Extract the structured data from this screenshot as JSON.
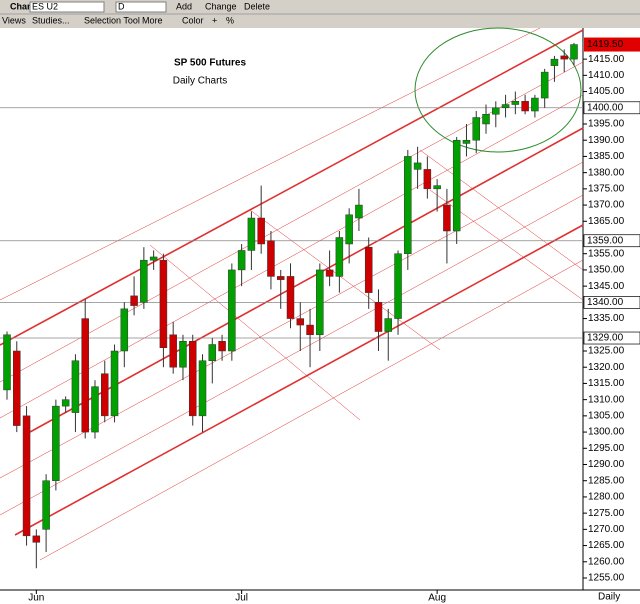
{
  "toolbar": {
    "chart": "Chart",
    "symbol": "ES U2",
    "interval": "D",
    "add": "Add",
    "change": "Change",
    "delete": "Delete",
    "views": "Views",
    "studies": "Studies...",
    "tool": "Selection Tool",
    "more": "More",
    "color": "Color",
    "plus": "+",
    "percent": "%"
  },
  "chart_data": {
    "type": "candlestick",
    "title": "SP 500 Futures",
    "subtitle": "Daily Charts",
    "x_label": "Daily",
    "categories": [
      null,
      null,
      null,
      "Jun",
      null,
      null,
      null,
      null,
      null,
      null,
      null,
      null,
      null,
      null,
      null,
      null,
      null,
      null,
      null,
      null,
      null,
      null,
      null,
      null,
      "Jul",
      null,
      null,
      null,
      null,
      null,
      null,
      null,
      null,
      null,
      null,
      null,
      null,
      null,
      null,
      null,
      null,
      null,
      null,
      null,
      "Aug",
      null,
      null,
      null,
      null,
      null,
      null,
      null,
      null,
      null,
      null,
      null,
      null,
      null,
      null
    ],
    "open": [
      1313,
      1325,
      1305,
      1268,
      1270,
      1285,
      1308,
      1306,
      1335,
      1300,
      1318,
      1305,
      1325,
      1342,
      1340,
      1353,
      1353,
      1330,
      1320,
      1328,
      1305,
      1322,
      1328,
      1325,
      1350,
      1356,
      1366,
      1359,
      1348,
      1348,
      1335,
      1333,
      1330,
      1350,
      1348,
      1358,
      1366,
      1357,
      1340,
      1331,
      1335,
      1355,
      1381,
      1381,
      1375,
      1370,
      1362,
      1389,
      1390,
      1395,
      1398,
      1400,
      1401,
      1402,
      1399,
      1403,
      1413,
      1416,
      1415
    ],
    "high": [
      1331,
      1328,
      1308,
      1270,
      1287,
      1310,
      1311,
      1324,
      1341,
      1316,
      1322,
      1327,
      1340,
      1348,
      1357,
      1356,
      1355,
      1334,
      1330,
      1330,
      1324,
      1329,
      1330,
      1352,
      1358,
      1368,
      1376,
      1362,
      1350,
      1352,
      1340,
      1338,
      1352,
      1356,
      1362,
      1369,
      1375,
      1360,
      1344,
      1338,
      1356,
      1387,
      1388,
      1385,
      1378,
      1375,
      1391,
      1395,
      1399,
      1401,
      1402,
      1404,
      1405,
      1404,
      1404,
      1412,
      1416,
      1418,
      1420
    ],
    "low": [
      1310,
      1300,
      1265,
      1258,
      1263,
      1282,
      1306,
      1300,
      1298,
      1298,
      1303,
      1303,
      1320,
      1336,
      1338,
      1350,
      1320,
      1318,
      1316,
      1302,
      1300,
      1315,
      1322,
      1322,
      1345,
      1350,
      1355,
      1344,
      1338,
      1332,
      1325,
      1320,
      1325,
      1345,
      1343,
      1352,
      1362,
      1338,
      1325,
      1322,
      1330,
      1350,
      1375,
      1372,
      1368,
      1352,
      1358,
      1385,
      1386,
      1392,
      1394,
      1397,
      1398,
      1398,
      1397,
      1400,
      1408,
      1411,
      1413
    ],
    "close": [
      1330,
      1302,
      1268,
      1266,
      1285,
      1308,
      1310,
      1322,
      1300,
      1314,
      1305,
      1325,
      1338,
      1339,
      1353,
      1354,
      1326,
      1320,
      1328,
      1305,
      1322,
      1327,
      1325,
      1350,
      1356,
      1366,
      1358,
      1348,
      1347,
      1335,
      1333,
      1330,
      1350,
      1348,
      1360,
      1367,
      1370,
      1343,
      1331,
      1335,
      1355,
      1385,
      1383,
      1375,
      1376,
      1362,
      1390,
      1390,
      1397,
      1398,
      1400,
      1401,
      1402,
      1399,
      1403,
      1411,
      1415,
      1415,
      1419.5
    ],
    "up_color": "#00a000",
    "down_color": "#cc0000",
    "ylim": [
      1251.3,
      1424.6
    ],
    "yticks": [
      {
        "value": 1255,
        "label": "1255.00"
      },
      {
        "value": 1260,
        "label": "1260.00"
      },
      {
        "value": 1265,
        "label": "1265.00"
      },
      {
        "value": 1270,
        "label": "1270.00"
      },
      {
        "value": 1275,
        "label": "1275.00"
      },
      {
        "value": 1280,
        "label": "1280.00"
      },
      {
        "value": 1285,
        "label": "1285.00"
      },
      {
        "value": 1290,
        "label": "1290.00"
      },
      {
        "value": 1295,
        "label": "1295.00"
      },
      {
        "value": 1300,
        "label": "1300.00"
      },
      {
        "value": 1305,
        "label": "1305.00"
      },
      {
        "value": 1310,
        "label": "1310.00"
      },
      {
        "value": 1315,
        "label": "1315.00"
      },
      {
        "value": 1320,
        "label": "1320.00"
      },
      {
        "value": 1325,
        "label": "1325.00"
      },
      {
        "value": 1335,
        "label": "1335.00"
      },
      {
        "value": 1345,
        "label": "1345.00"
      },
      {
        "value": 1350,
        "label": "1350.00"
      },
      {
        "value": 1355,
        "label": "1355.00"
      },
      {
        "value": 1365,
        "label": "1365.00"
      },
      {
        "value": 1370,
        "label": "1370.00"
      },
      {
        "value": 1375,
        "label": "1375.00"
      },
      {
        "value": 1380,
        "label": "1380.00"
      },
      {
        "value": 1385,
        "label": "1385.00"
      },
      {
        "value": 1390,
        "label": "1390.00"
      },
      {
        "value": 1395,
        "label": "1395.00"
      },
      {
        "value": 1405,
        "label": "1405.00"
      },
      {
        "value": 1410,
        "label": "1410.00"
      },
      {
        "value": 1415,
        "label": "1415.00"
      }
    ],
    "price_lines": [
      {
        "value": 1400,
        "label": "1400.00"
      },
      {
        "value": 1359,
        "label": "1359.00"
      },
      {
        "value": 1340,
        "label": "1340.00"
      },
      {
        "value": 1329,
        "label": "1329.00"
      }
    ],
    "last_price": {
      "value": 1419.5,
      "label": "1419.50"
    }
  }
}
